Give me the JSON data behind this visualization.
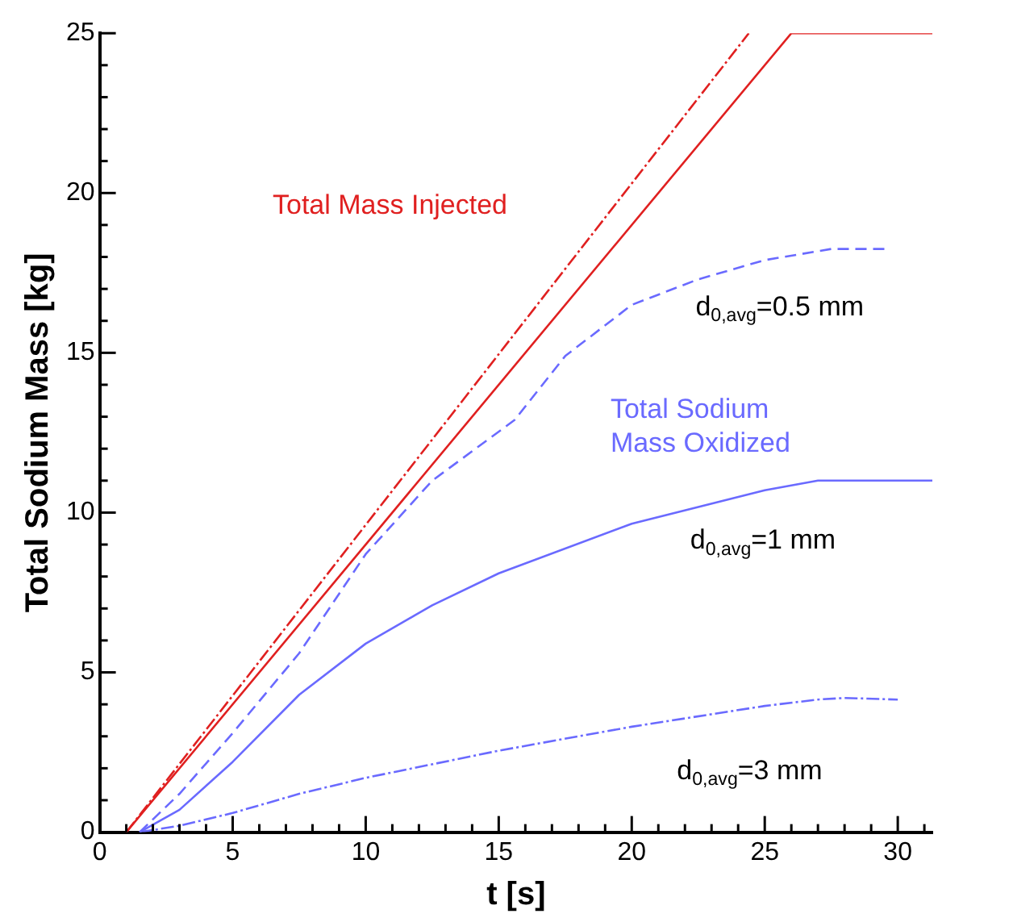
{
  "chart_data": {
    "type": "line",
    "xlabel": "t [s]",
    "ylabel": "Total Sodium Mass [kg]",
    "xlim": [
      0,
      31.3
    ],
    "ylim": [
      0,
      25
    ],
    "xticks": [
      0,
      {
        "value": 1,
        "label": null
      },
      {
        "value": 2,
        "label": null
      },
      {
        "value": 3,
        "label": null
      },
      {
        "value": 4,
        "label": null
      },
      5,
      {
        "value": 6,
        "label": null
      },
      {
        "value": 7,
        "label": null
      },
      {
        "value": 8,
        "label": null
      },
      {
        "value": 9,
        "label": null
      },
      10,
      {
        "value": 11,
        "label": null
      },
      {
        "value": 12,
        "label": null
      },
      {
        "value": 13,
        "label": null
      },
      {
        "value": 14,
        "label": null
      },
      15,
      {
        "value": 16,
        "label": null
      },
      {
        "value": 17,
        "label": null
      },
      {
        "value": 18,
        "label": null
      },
      {
        "value": 19,
        "label": null
      },
      20,
      {
        "value": 21,
        "label": null
      },
      {
        "value": 22,
        "label": null
      },
      {
        "value": 23,
        "label": null
      },
      {
        "value": 24,
        "label": null
      },
      25,
      {
        "value": 26,
        "label": null
      },
      {
        "value": 27,
        "label": null
      },
      {
        "value": 28,
        "label": null
      },
      {
        "value": 29,
        "label": null
      },
      30,
      {
        "value": 31,
        "label": null
      }
    ],
    "yticks": [
      0,
      {
        "value": 1,
        "label": null
      },
      {
        "value": 2,
        "label": null
      },
      {
        "value": 3,
        "label": null
      },
      {
        "value": 4,
        "label": null
      },
      5,
      {
        "value": 6,
        "label": null
      },
      {
        "value": 7,
        "label": null
      },
      {
        "value": 8,
        "label": null
      },
      {
        "value": 9,
        "label": null
      },
      10,
      {
        "value": 11,
        "label": null
      },
      {
        "value": 12,
        "label": null
      },
      {
        "value": 13,
        "label": null
      },
      {
        "value": 14,
        "label": null
      },
      15,
      {
        "value": 16,
        "label": null
      },
      {
        "value": 17,
        "label": null
      },
      {
        "value": 18,
        "label": null
      },
      {
        "value": 19,
        "label": null
      },
      20,
      {
        "value": 21,
        "label": null
      },
      {
        "value": 22,
        "label": null
      },
      {
        "value": 23,
        "label": null
      },
      {
        "value": 24,
        "label": null
      },
      25
    ],
    "grid": false,
    "legend": false,
    "marker": "none",
    "series": [
      {
        "color": "#e02020",
        "line_style": "dotted",
        "x": [
          1.0,
          24.4
        ],
        "values": [
          0,
          25
        ]
      },
      {
        "name": "Total Mass Injected",
        "color": "#e02020",
        "line_style": "solid",
        "x": [
          1.0,
          26.0,
          31.3
        ],
        "values": [
          0,
          25,
          25
        ]
      },
      {
        "name": "d$_{0,avg}$=0.5 mm",
        "color": "#6a6aff",
        "line_style": "dashed",
        "x": [
          1.5,
          3,
          5,
          7.5,
          10,
          12.5,
          15.6,
          17.5,
          20,
          22.5,
          25,
          27.5,
          29.5
        ],
        "values": [
          0,
          1.2,
          3.1,
          5.6,
          8.7,
          11.0,
          12.9,
          14.9,
          16.5,
          17.3,
          17.9,
          18.25,
          18.25
        ]
      },
      {
        "name": "d$_{0,avg}$=1 mm",
        "color": "#6a6aff",
        "line_style": "solid",
        "x": [
          1.5,
          3,
          5,
          7.5,
          10,
          12.5,
          15,
          20,
          25,
          27,
          31.3
        ],
        "values": [
          0,
          0.7,
          2.2,
          4.3,
          5.9,
          7.1,
          8.1,
          9.65,
          10.7,
          11.0,
          11.0
        ]
      },
      {
        "name": "d$_{0,avg}$=3 mm",
        "color": "#6a6aff",
        "line_style": "dotted",
        "x": [
          1.5,
          3,
          5,
          7.5,
          10,
          15,
          20,
          25,
          27,
          28,
          30
        ],
        "values": [
          0,
          0.2,
          0.6,
          1.2,
          1.7,
          2.55,
          3.3,
          3.95,
          4.15,
          4.2,
          4.15
        ]
      }
    ],
    "annotations": [
      "Total Sodium Mass Oxidized"
    ]
  }
}
